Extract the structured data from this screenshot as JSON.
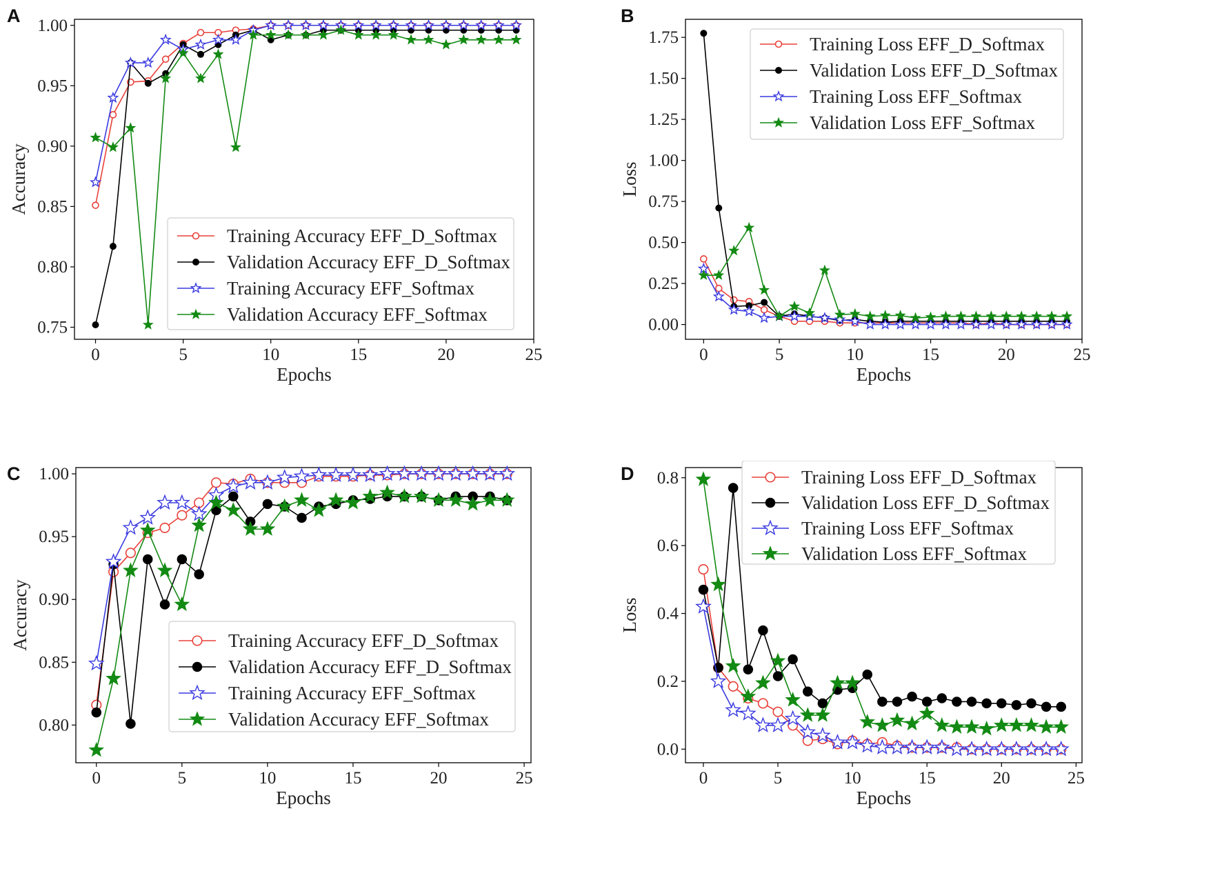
{
  "chart_data": [
    {
      "panel": "A",
      "type": "line",
      "title": "",
      "xlabel": "Epochs",
      "ylabel": "Accuracy",
      "xlim": [
        -1.2,
        25
      ],
      "ylim": [
        0.74,
        1.005
      ],
      "xticks": [
        0,
        5,
        10,
        15,
        20,
        25
      ],
      "yticks": [
        0.75,
        0.8,
        0.85,
        0.9,
        0.95,
        1.0
      ],
      "ytick_labels": [
        "0.75",
        "0.80",
        "0.85",
        "0.90",
        "0.95",
        "1.00"
      ],
      "marker_scale": 1,
      "legend_placement": "lower-right",
      "x": [
        0,
        1,
        2,
        3,
        4,
        5,
        6,
        7,
        8,
        9,
        10,
        11,
        12,
        13,
        14,
        15,
        16,
        17,
        18,
        19,
        20,
        21,
        22,
        23,
        24
      ],
      "series": [
        {
          "name": "Training Accuracy EFF_D_Softmax",
          "color": "#e8413a",
          "marker": "circle-open",
          "values": [
            0.851,
            0.926,
            0.953,
            0.954,
            0.972,
            0.985,
            0.994,
            0.994,
            0.996,
            0.997,
            1.0,
            1.0,
            1.0,
            1.0,
            1.0,
            1.0,
            1.0,
            1.0,
            1.0,
            1.0,
            1.0,
            1.0,
            1.0,
            1.0,
            1.0
          ]
        },
        {
          "name": "Validation Accuracy EFF_D_Softmax",
          "color": "#000000",
          "marker": "circle-filled",
          "values": [
            0.752,
            0.817,
            0.969,
            0.952,
            0.96,
            0.984,
            0.976,
            0.984,
            0.992,
            0.996,
            0.988,
            0.992,
            0.992,
            0.996,
            0.996,
            0.996,
            0.996,
            0.996,
            0.996,
            0.996,
            0.996,
            0.996,
            0.996,
            0.996,
            0.996
          ]
        },
        {
          "name": "Training Accuracy EFF_Softmax",
          "color": "#3a3ae0",
          "marker": "star-open",
          "values": [
            0.87,
            0.94,
            0.969,
            0.969,
            0.988,
            0.98,
            0.984,
            0.988,
            0.988,
            0.996,
            1.0,
            1.0,
            1.0,
            1.0,
            1.0,
            1.0,
            1.0,
            1.0,
            1.0,
            1.0,
            1.0,
            1.0,
            1.0,
            1.0,
            1.0
          ]
        },
        {
          "name": "Validation Accuracy EFF_Softmax",
          "color": "#138a13",
          "marker": "star-filled",
          "values": [
            0.907,
            0.899,
            0.915,
            0.752,
            0.956,
            0.977,
            0.956,
            0.976,
            0.899,
            0.992,
            0.992,
            0.992,
            0.992,
            0.992,
            0.996,
            0.992,
            0.992,
            0.992,
            0.988,
            0.988,
            0.984,
            0.988,
            0.988,
            0.988,
            0.988
          ]
        }
      ]
    },
    {
      "panel": "B",
      "type": "line",
      "title": "",
      "xlabel": "Epochs",
      "ylabel": "Loss",
      "xlim": [
        -1.2,
        25
      ],
      "ylim": [
        -0.09,
        1.86
      ],
      "xticks": [
        0,
        5,
        10,
        15,
        20,
        25
      ],
      "yticks": [
        0.0,
        0.25,
        0.5,
        0.75,
        1.0,
        1.25,
        1.5,
        1.75
      ],
      "ytick_labels": [
        "0.00",
        "0.25",
        "0.50",
        "0.75",
        "1.00",
        "1.25",
        "1.50",
        "1.75"
      ],
      "marker_scale": 1,
      "legend_placement": "upper-right",
      "x": [
        0,
        1,
        2,
        3,
        4,
        5,
        6,
        7,
        8,
        9,
        10,
        11,
        12,
        13,
        14,
        15,
        16,
        17,
        18,
        19,
        20,
        21,
        22,
        23,
        24
      ],
      "series": [
        {
          "name": "Training Loss EFF_D_Softmax",
          "color": "#e8413a",
          "marker": "circle-open",
          "values": [
            0.4,
            0.22,
            0.15,
            0.14,
            0.09,
            0.05,
            0.02,
            0.02,
            0.02,
            0.01,
            0.01,
            0.01,
            0.01,
            0.01,
            0.01,
            0.01,
            0.01,
            0.01,
            0.0,
            0.01,
            0.0,
            0.0,
            0.0,
            0.0,
            0.0
          ]
        },
        {
          "name": "Validation Loss EFF_D_Softmax",
          "color": "#000000",
          "marker": "circle-filled",
          "values": [
            1.775,
            0.71,
            0.11,
            0.115,
            0.135,
            0.05,
            0.065,
            0.05,
            0.04,
            0.025,
            0.03,
            0.02,
            0.015,
            0.02,
            0.02,
            0.02,
            0.02,
            0.02,
            0.02,
            0.02,
            0.02,
            0.02,
            0.02,
            0.02,
            0.02
          ]
        },
        {
          "name": "Training Loss EFF_Softmax",
          "color": "#3a3ae0",
          "marker": "star-open",
          "values": [
            0.34,
            0.17,
            0.09,
            0.08,
            0.04,
            0.05,
            0.05,
            0.05,
            0.04,
            0.03,
            0.02,
            0.0,
            0.0,
            0.0,
            0.0,
            0.0,
            0.0,
            0.0,
            0.0,
            0.0,
            0.0,
            0.0,
            0.0,
            0.0,
            0.0
          ]
        },
        {
          "name": "Validation Loss EFF_Softmax",
          "color": "#138a13",
          "marker": "star-filled",
          "values": [
            0.3,
            0.3,
            0.45,
            0.59,
            0.21,
            0.05,
            0.11,
            0.07,
            0.33,
            0.06,
            0.065,
            0.05,
            0.055,
            0.055,
            0.04,
            0.045,
            0.05,
            0.05,
            0.05,
            0.05,
            0.05,
            0.05,
            0.05,
            0.05,
            0.05
          ]
        }
      ]
    },
    {
      "panel": "C",
      "type": "line",
      "title": "",
      "xlabel": "Epochs",
      "ylabel": "Accuracy",
      "xlim": [
        -1.2,
        25.4
      ],
      "ylim": [
        0.77,
        1.005
      ],
      "xticks": [
        0,
        5,
        10,
        15,
        20,
        25
      ],
      "yticks": [
        0.8,
        0.85,
        0.9,
        0.95,
        1.0
      ],
      "ytick_labels": [
        "0.80",
        "0.85",
        "0.90",
        "0.95",
        "1.00"
      ],
      "marker_scale": 1.5,
      "legend_placement": "lower-right",
      "x": [
        0,
        1,
        2,
        3,
        4,
        5,
        6,
        7,
        8,
        9,
        10,
        11,
        12,
        13,
        14,
        15,
        16,
        17,
        18,
        19,
        20,
        21,
        22,
        23,
        24
      ],
      "series": [
        {
          "name": "Training Accuracy EFF_D_Softmax",
          "color": "#e8413a",
          "marker": "circle-open",
          "values": [
            0.816,
            0.922,
            0.937,
            0.953,
            0.957,
            0.967,
            0.977,
            0.993,
            0.992,
            0.996,
            0.993,
            0.993,
            0.993,
            0.998,
            0.998,
            0.998,
            0.999,
            0.999,
            1.0,
            1.0,
            1.0,
            1.0,
            1.0,
            1.0,
            1.0
          ]
        },
        {
          "name": "Validation Accuracy EFF_D_Softmax",
          "color": "#000000",
          "marker": "circle-filled",
          "values": [
            0.81,
            0.928,
            0.801,
            0.932,
            0.896,
            0.932,
            0.92,
            0.971,
            0.982,
            0.962,
            0.976,
            0.974,
            0.965,
            0.974,
            0.976,
            0.979,
            0.98,
            0.982,
            0.982,
            0.982,
            0.979,
            0.982,
            0.982,
            0.982,
            0.979
          ]
        },
        {
          "name": "Training Accuracy EFF_Softmax",
          "color": "#3a3ae0",
          "marker": "star-open",
          "values": [
            0.849,
            0.93,
            0.957,
            0.965,
            0.977,
            0.977,
            0.968,
            0.983,
            0.99,
            0.993,
            0.993,
            0.997,
            0.998,
            0.999,
            0.999,
            0.999,
            0.999,
            1.0,
            1.0,
            1.0,
            1.0,
            1.0,
            1.0,
            1.0,
            1.0
          ]
        },
        {
          "name": "Validation Accuracy EFF_Softmax",
          "color": "#138a13",
          "marker": "star-filled",
          "values": [
            0.78,
            0.837,
            0.923,
            0.955,
            0.923,
            0.896,
            0.959,
            0.977,
            0.971,
            0.956,
            0.956,
            0.974,
            0.979,
            0.971,
            0.979,
            0.977,
            0.982,
            0.985,
            0.982,
            0.982,
            0.979,
            0.979,
            0.976,
            0.979,
            0.979
          ]
        }
      ]
    },
    {
      "panel": "D",
      "type": "line",
      "title": "",
      "xlabel": "Epochs",
      "ylabel": "Loss",
      "xlim": [
        -1.2,
        25.4
      ],
      "ylim": [
        -0.04,
        0.83
      ],
      "xticks": [
        0,
        5,
        10,
        15,
        20,
        25
      ],
      "yticks": [
        0.0,
        0.2,
        0.4,
        0.6,
        0.8
      ],
      "ytick_labels": [
        "0.0",
        "0.2",
        "0.4",
        "0.6",
        "0.8"
      ],
      "marker_scale": 1.5,
      "legend_placement": "upper-right",
      "x": [
        0,
        1,
        2,
        3,
        4,
        5,
        6,
        7,
        8,
        9,
        10,
        11,
        12,
        13,
        14,
        15,
        16,
        17,
        18,
        19,
        20,
        21,
        22,
        23,
        24
      ],
      "series": [
        {
          "name": "Training Loss EFF_D_Softmax",
          "color": "#e8413a",
          "marker": "circle-open",
          "values": [
            0.53,
            0.24,
            0.185,
            0.15,
            0.135,
            0.11,
            0.07,
            0.025,
            0.03,
            0.015,
            0.025,
            0.015,
            0.02,
            0.01,
            0.005,
            0.005,
            0.005,
            0.005,
            0.0,
            0.0,
            0.0,
            0.0,
            0.0,
            0.0,
            0.0
          ]
        },
        {
          "name": "Validation Loss EFF_D_Softmax",
          "color": "#000000",
          "marker": "circle-filled",
          "values": [
            0.47,
            0.24,
            0.77,
            0.235,
            0.35,
            0.215,
            0.265,
            0.17,
            0.135,
            0.175,
            0.18,
            0.22,
            0.14,
            0.14,
            0.155,
            0.14,
            0.15,
            0.14,
            0.14,
            0.135,
            0.135,
            0.13,
            0.135,
            0.125,
            0.125
          ]
        },
        {
          "name": "Training Loss EFF_Softmax",
          "color": "#3a3ae0",
          "marker": "star-open",
          "values": [
            0.42,
            0.2,
            0.115,
            0.105,
            0.07,
            0.07,
            0.09,
            0.05,
            0.04,
            0.02,
            0.02,
            0.01,
            0.005,
            0.005,
            0.005,
            0.005,
            0.005,
            0.0,
            0.0,
            0.0,
            0.0,
            0.0,
            0.0,
            0.0,
            0.0
          ]
        },
        {
          "name": "Validation Loss EFF_Softmax",
          "color": "#138a13",
          "marker": "star-filled",
          "values": [
            0.795,
            0.485,
            0.245,
            0.155,
            0.195,
            0.26,
            0.145,
            0.1,
            0.1,
            0.195,
            0.195,
            0.08,
            0.07,
            0.085,
            0.075,
            0.105,
            0.07,
            0.065,
            0.065,
            0.06,
            0.07,
            0.07,
            0.07,
            0.065,
            0.065
          ]
        }
      ]
    }
  ]
}
